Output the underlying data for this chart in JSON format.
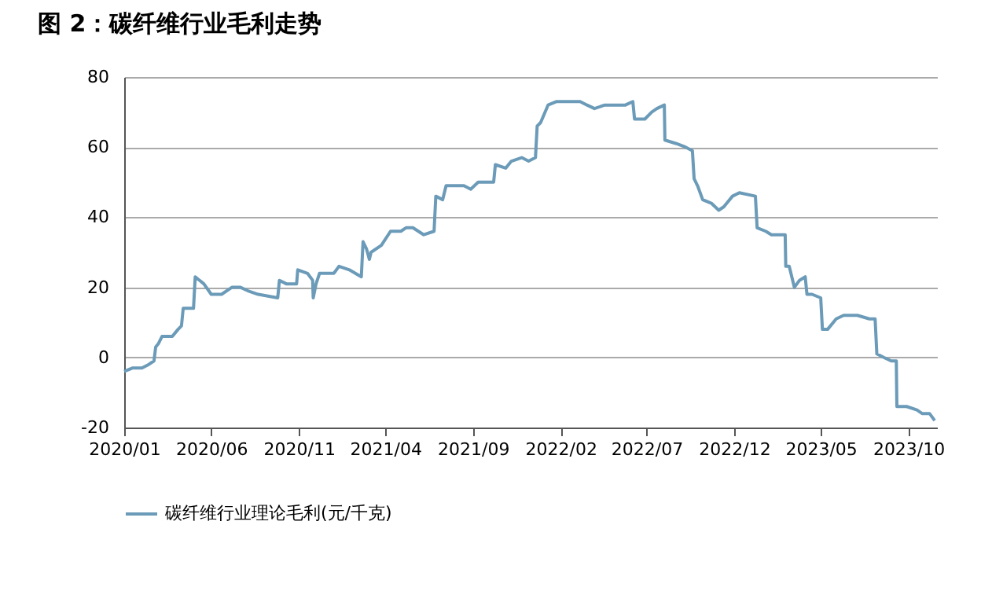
{
  "chart_data": {
    "type": "line",
    "title": "图 2：碳纤维行业毛利走势",
    "x": [
      "2020-01-01",
      "2020-01-16",
      "2020-02-01",
      "2020-02-13",
      "2020-02-22",
      "2020-02-25",
      "2020-03-01",
      "2020-03-07",
      "2020-03-25",
      "2020-04-04",
      "2020-04-10",
      "2020-04-13",
      "2020-05-01",
      "2020-05-04",
      "2020-05-19",
      "2020-06-01",
      "2020-06-19",
      "2020-07-07",
      "2020-07-22",
      "2020-08-04",
      "2020-08-22",
      "2020-09-25",
      "2020-09-28",
      "2020-10-10",
      "2020-10-28",
      "2020-10-30",
      "2020-11-16",
      "2020-11-25",
      "2020-11-26",
      "2020-12-01",
      "2020-12-07",
      "2021-01-01",
      "2021-01-10",
      "2021-01-28",
      "2021-02-18",
      "2021-02-21",
      "2021-02-27",
      "2021-03-04",
      "2021-03-07",
      "2021-03-25",
      "2021-04-10",
      "2021-04-28",
      "2021-05-07",
      "2021-05-19",
      "2021-06-07",
      "2021-06-25",
      "2021-06-28",
      "2021-07-10",
      "2021-07-16",
      "2021-08-16",
      "2021-08-28",
      "2021-09-10",
      "2021-09-22",
      "2021-10-07",
      "2021-10-10",
      "2021-10-28",
      "2021-11-07",
      "2021-11-25",
      "2021-12-07",
      "2021-12-19",
      "2021-12-22",
      "2021-12-28",
      "2022-01-10",
      "2022-01-25",
      "2022-02-16",
      "2022-03-07",
      "2022-03-19",
      "2022-04-01",
      "2022-04-19",
      "2022-05-13",
      "2022-05-25",
      "2022-06-07",
      "2022-06-10",
      "2022-06-28",
      "2022-07-10",
      "2022-07-19",
      "2022-08-01",
      "2022-08-02",
      "2022-08-22",
      "2022-09-07",
      "2022-09-19",
      "2022-09-22",
      "2022-09-28",
      "2022-10-07",
      "2022-10-22",
      "2022-11-04",
      "2022-11-13",
      "2022-11-28",
      "2022-12-10",
      "2023-01-07",
      "2023-01-10",
      "2023-01-25",
      "2023-02-04",
      "2023-02-19",
      "2023-02-28",
      "2023-03-01",
      "2023-03-07",
      "2023-03-16",
      "2023-03-25",
      "2023-04-04",
      "2023-04-07",
      "2023-04-16",
      "2023-05-01",
      "2023-05-04",
      "2023-05-13",
      "2023-05-28",
      "2023-06-10",
      "2023-07-04",
      "2023-07-25",
      "2023-08-04",
      "2023-08-07",
      "2023-08-19",
      "2023-09-01",
      "2023-09-10",
      "2023-09-11",
      "2023-09-28",
      "2023-10-16",
      "2023-10-25",
      "2023-11-07",
      "2023-11-16"
    ],
    "series": [
      {
        "name": "碳纤维行业理论毛利(元/千克)",
        "color": "#6b9bb8",
        "values": [
          -4,
          -3,
          -3,
          -2,
          -1,
          3,
          4,
          6,
          6,
          8,
          9,
          14,
          14,
          23,
          21,
          18,
          18,
          20,
          20,
          19,
          18,
          17,
          22,
          21,
          21,
          25,
          24,
          22,
          17,
          21,
          24,
          24,
          26,
          25,
          23,
          33,
          31,
          28,
          30,
          32,
          36,
          36,
          37,
          37,
          35,
          36,
          46,
          45,
          49,
          49,
          48,
          50,
          50,
          50,
          55,
          54,
          56,
          57,
          56,
          57,
          66,
          67,
          72,
          73,
          73,
          73,
          72,
          71,
          72,
          72,
          72,
          73,
          68,
          68,
          70,
          71,
          72,
          62,
          61,
          60,
          59,
          51,
          49,
          45,
          44,
          42,
          43,
          46,
          47,
          46,
          37,
          36,
          35,
          35,
          35,
          26,
          26,
          20,
          22,
          23,
          18,
          18,
          17,
          8,
          8,
          11,
          12,
          12,
          11,
          11,
          1,
          0,
          -1,
          -1,
          -14,
          -14,
          -15,
          -16,
          -16,
          -18
        ]
      }
    ],
    "xlim": [
      "2020-01-01",
      "2023-11-20"
    ],
    "xticks": [
      {
        "value": "2020-01",
        "label": "2020/01"
      },
      {
        "value": "2020-06",
        "label": "2020/06"
      },
      {
        "value": "2020-11",
        "label": "2020/11"
      },
      {
        "value": "2021-04",
        "label": "2021/04"
      },
      {
        "value": "2021-09",
        "label": "2021/09"
      },
      {
        "value": "2022-02",
        "label": "2022/02"
      },
      {
        "value": "2022-07",
        "label": "2022/07"
      },
      {
        "value": "2022-12",
        "label": "2022/12"
      },
      {
        "value": "2023-05",
        "label": "2023/05"
      },
      {
        "value": "2023-10",
        "label": "2023/10"
      }
    ],
    "ylim": [
      -20,
      80
    ],
    "yticks": [
      -20,
      0,
      20,
      40,
      60,
      80
    ],
    "grid": "y",
    "legend": "bottom"
  }
}
